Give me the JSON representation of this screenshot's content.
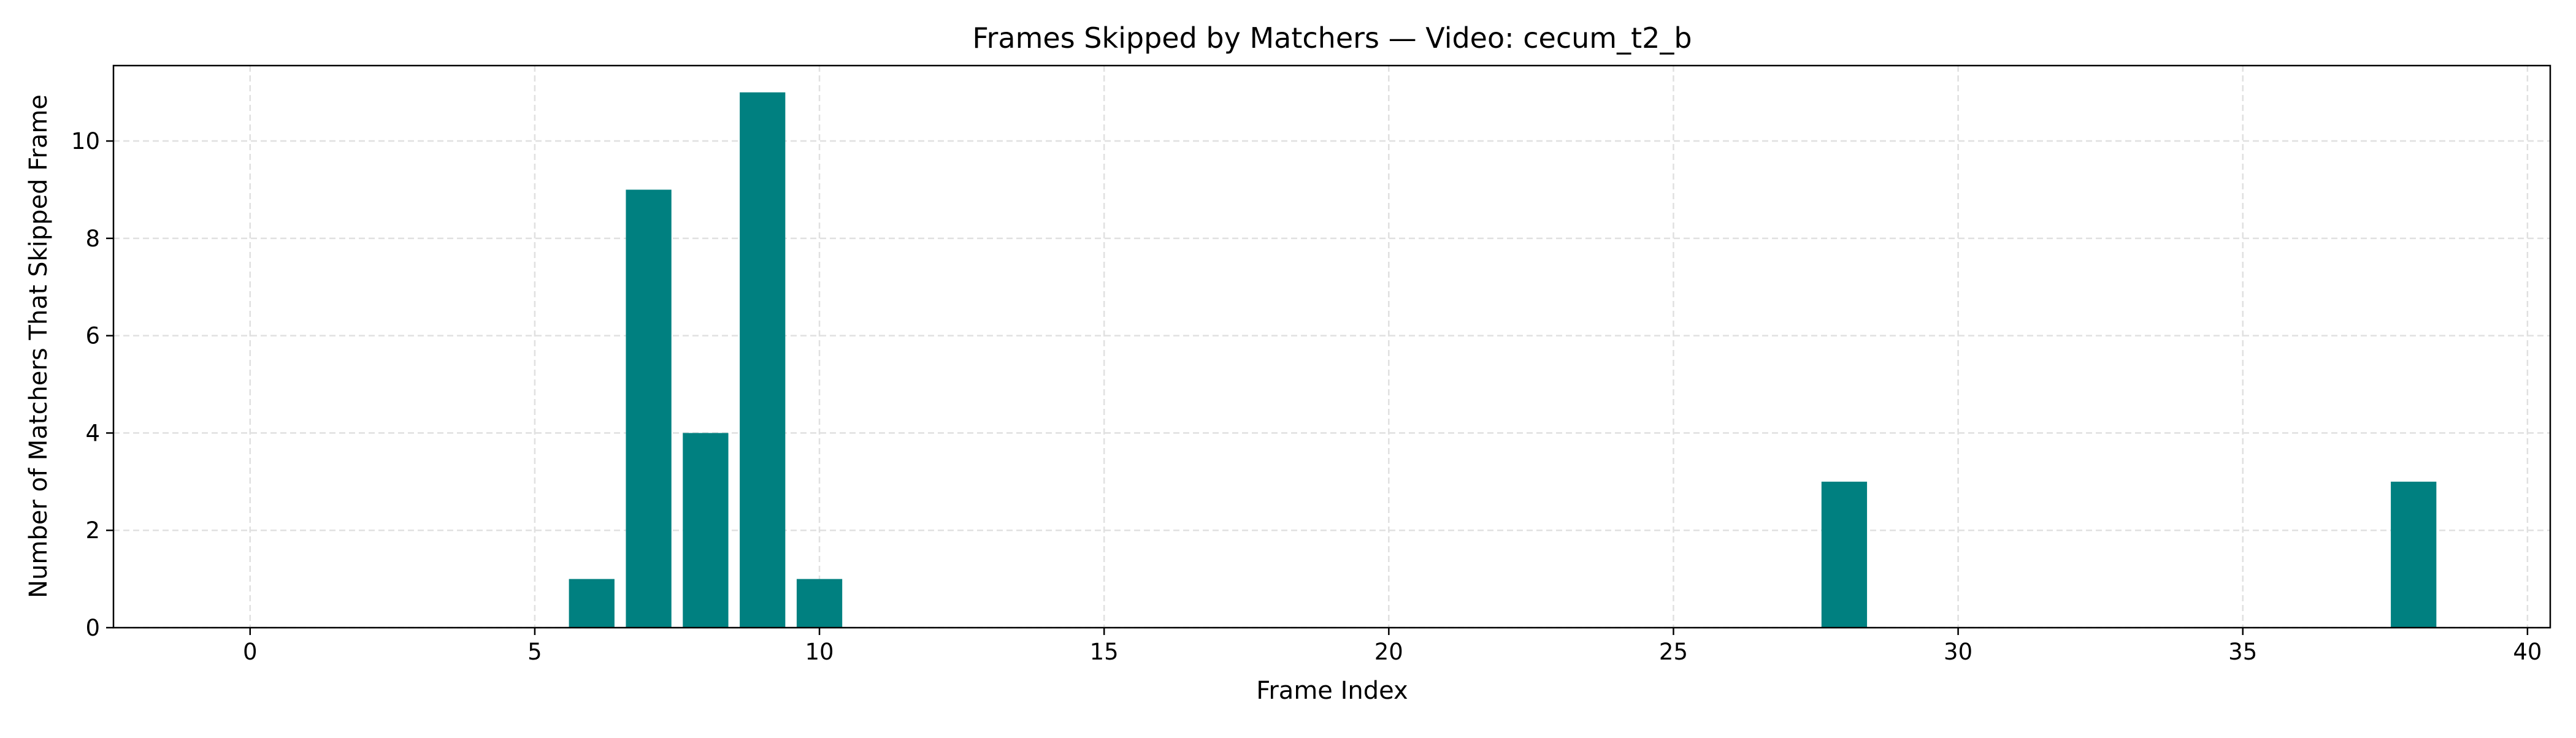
{
  "chart_data": {
    "type": "bar",
    "title": "Frames Skipped by Matchers — Video: cecum_t2_b",
    "xlabel": "Frame Index",
    "ylabel": "Number of Matchers That Skipped Frame",
    "xlim": [
      -2.4,
      40.4
    ],
    "ylim": [
      0,
      11.55
    ],
    "x_ticks": [
      0,
      5,
      10,
      15,
      20,
      25,
      30,
      35,
      40
    ],
    "y_ticks": [
      0,
      2,
      4,
      6,
      8,
      10
    ],
    "grid": true,
    "bar_color": "#008080",
    "x": [
      6,
      7,
      8,
      9,
      10,
      28,
      38
    ],
    "values": [
      1,
      9,
      4,
      11,
      1,
      3,
      3
    ]
  }
}
